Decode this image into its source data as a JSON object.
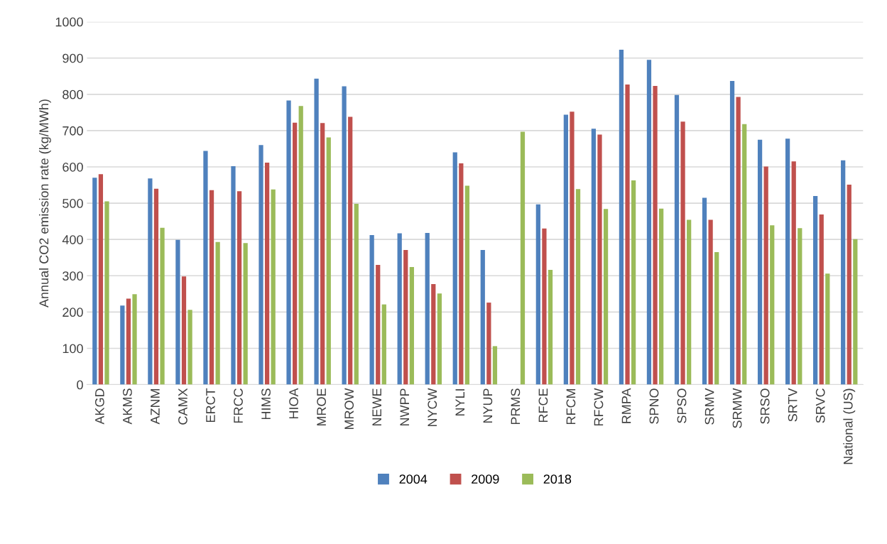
{
  "chart_data": {
    "type": "bar",
    "ylabel": "Annual CO2 emission rate (kg/MWh)",
    "categories": [
      "AKGD",
      "AKMS",
      "AZNM",
      "CAMX",
      "ERCT",
      "FRCC",
      "HIMS",
      "HIOA",
      "MROE",
      "MROW",
      "NEWE",
      "NWPP",
      "NYCW",
      "NYLI",
      "NYUP",
      "PRMS",
      "RFCE",
      "RFCM",
      "RFCW",
      "RMPA",
      "SPNO",
      "SPSO",
      "SRMV",
      "SRMW",
      "SRSO",
      "SRTV",
      "SRVC",
      "National (US)"
    ],
    "series": [
      {
        "name": "2004",
        "color": "#4f81bd",
        "values": [
          570,
          218,
          568,
          399,
          644,
          602,
          660,
          783,
          843,
          822,
          412,
          417,
          418,
          640,
          371,
          null,
          497,
          744,
          705,
          923,
          895,
          798,
          515,
          837,
          675,
          678,
          520,
          618
        ]
      },
      {
        "name": "2009",
        "color": "#c0504d",
        "values": [
          580,
          237,
          540,
          298,
          536,
          533,
          612,
          722,
          721,
          738,
          330,
          371,
          277,
          610,
          226,
          null,
          430,
          752,
          689,
          827,
          823,
          725,
          454,
          793,
          601,
          615,
          469,
          551
        ]
      },
      {
        "name": "2018",
        "color": "#9bbb59",
        "values": [
          505,
          249,
          432,
          206,
          393,
          390,
          538,
          768,
          681,
          498,
          221,
          324,
          251,
          548,
          106,
          697,
          316,
          539,
          484,
          563,
          485,
          454,
          365,
          718,
          439,
          431,
          306,
          401
        ]
      }
    ],
    "ylim": [
      0,
      1000
    ],
    "yticks": [
      0,
      100,
      200,
      300,
      400,
      500,
      600,
      700,
      800,
      900,
      1000
    ],
    "grid": "y",
    "legend": "bottom"
  }
}
